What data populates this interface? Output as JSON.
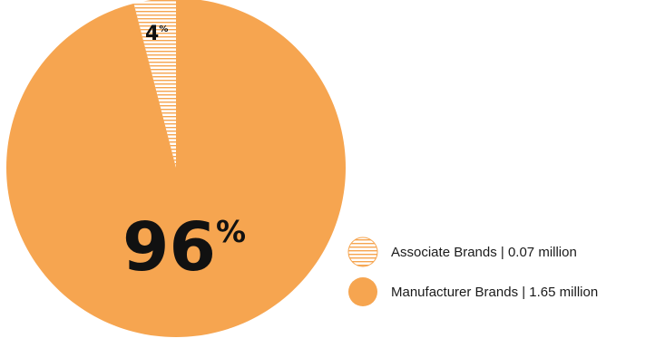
{
  "chart_data": {
    "type": "pie",
    "title": "",
    "slices": [
      {
        "label": "Associate Brands | 0.07 million",
        "value": 4,
        "display": "4",
        "pct_sign": "%",
        "color": "#ffffff",
        "pattern": "horizontal-stripes",
        "pattern_color": "#f6a550"
      },
      {
        "label": "Manufacturer Brands | 1.65 million",
        "value": 96,
        "display": "96",
        "pct_sign": "%",
        "color": "#f6a550",
        "pattern": "solid"
      }
    ],
    "legend": {
      "placement": "right"
    }
  }
}
